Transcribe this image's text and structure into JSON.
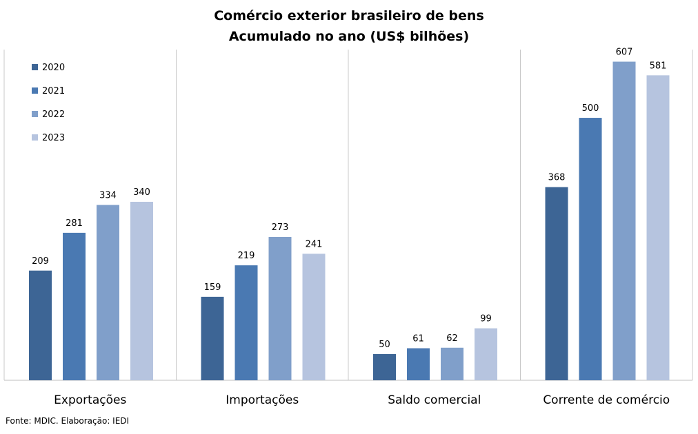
{
  "chart_data": {
    "type": "bar",
    "title": "Comércio exterior brasileiro de bens",
    "subtitle": "Acumulado no ano (US$ bilhões)",
    "categories": [
      "Exportações",
      "Importações",
      "Saldo comercial",
      "Corrente de comércio"
    ],
    "series": [
      {
        "name": "2020",
        "color": "#3d6595",
        "values": [
          209,
          159,
          50,
          368
        ]
      },
      {
        "name": "2021",
        "color": "#4a79b2",
        "values": [
          281,
          219,
          61,
          500
        ]
      },
      {
        "name": "2022",
        "color": "#809fca",
        "values": [
          334,
          273,
          62,
          607
        ]
      },
      {
        "name": "2023",
        "color": "#b6c4df",
        "values": [
          340,
          241,
          99,
          581
        ]
      }
    ],
    "ylim": [
      0,
      630
    ],
    "grid": false,
    "legend_position": "top-left",
    "data_labels": true
  },
  "source": "Fonte: MDIC. Elaboração: IEDI"
}
